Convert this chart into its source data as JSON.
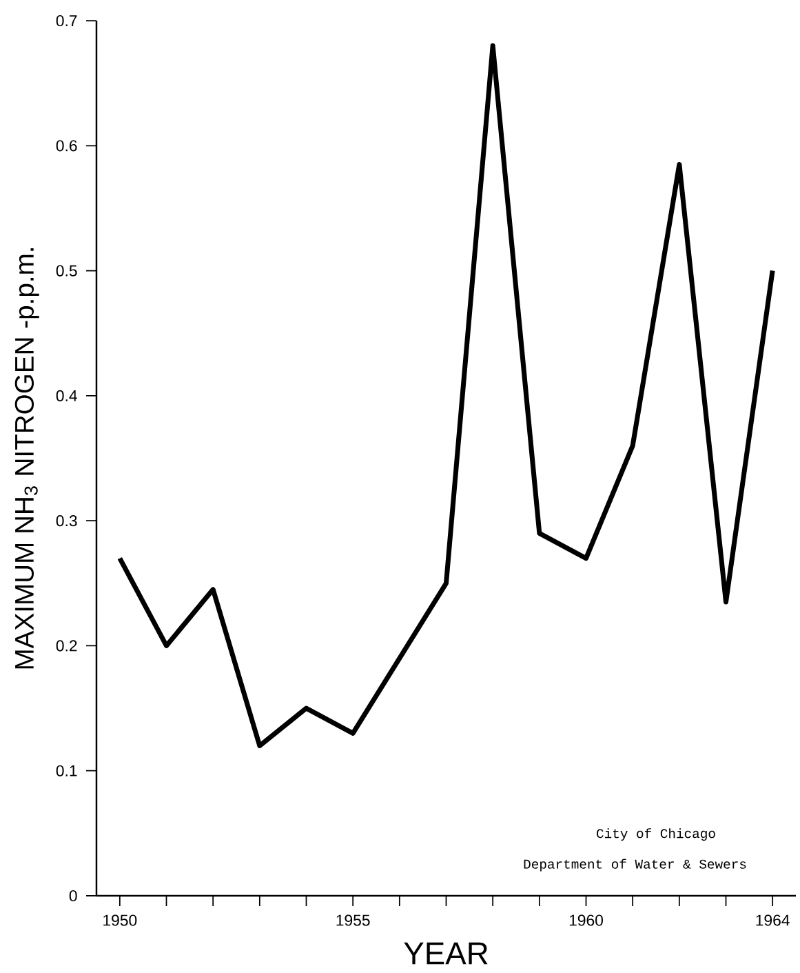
{
  "chart_data": {
    "type": "line",
    "xlabel": "YEAR",
    "ylabel": "MAXIMUM NH$_{3}$ NITROGEN -p.p.m.",
    "annotations": [
      "City of Chicago",
      "Department of Water & Sewers"
    ],
    "x": [
      1950,
      1951,
      1952,
      1953,
      1954,
      1955,
      1956,
      1957,
      1958,
      1959,
      1960,
      1961,
      1962,
      1963,
      1964
    ],
    "values": [
      0.27,
      0.2,
      0.245,
      0.12,
      0.15,
      0.13,
      0.19,
      0.25,
      0.68,
      0.29,
      0.27,
      0.36,
      0.585,
      0.235,
      0.5
    ],
    "color": "#000000",
    "line_style": "solid",
    "xlim": [
      1949.5,
      1964.5
    ],
    "ylim": [
      0,
      0.7
    ],
    "xticks": [
      1950,
      {
        "value": 1951,
        "label": null
      },
      {
        "value": 1952,
        "label": null
      },
      {
        "value": 1953,
        "label": null
      },
      {
        "value": 1954,
        "label": null
      },
      1955,
      {
        "value": 1956,
        "label": null
      },
      {
        "value": 1957,
        "label": null
      },
      {
        "value": 1958,
        "label": null
      },
      {
        "value": 1959,
        "label": null
      },
      1960,
      {
        "value": 1961,
        "label": null
      },
      {
        "value": 1962,
        "label": null
      },
      {
        "value": 1963,
        "label": null
      },
      1964
    ],
    "yticks": [
      0,
      0.1,
      0.2,
      0.3,
      0.4,
      0.5,
      0.6,
      0.7
    ],
    "grid": false
  }
}
